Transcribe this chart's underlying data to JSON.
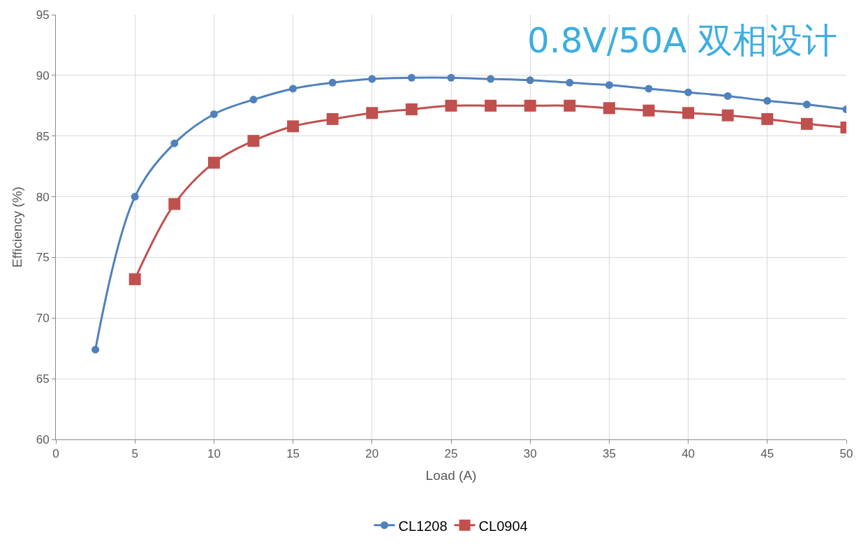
{
  "chart_data": {
    "type": "line",
    "title": "0.8V/50A 双相设计",
    "xlabel": "Load (A)",
    "ylabel": "Efficiency (%)",
    "xlim": [
      0,
      50
    ],
    "xticks": [
      0,
      5,
      10,
      15,
      20,
      25,
      30,
      35,
      40,
      45,
      50
    ],
    "ylim": [
      60,
      95
    ],
    "yticks": [
      60,
      65,
      70,
      75,
      80,
      85,
      90,
      95
    ],
    "grid": true,
    "legend": "bottom",
    "series": [
      {
        "name": "CL1208",
        "color": "#4f81bd",
        "marker": "circle",
        "x": [
          2.5,
          5,
          7.5,
          10,
          12.5,
          15,
          17.5,
          20,
          22.5,
          25,
          27.5,
          30,
          32.5,
          35,
          37.5,
          40,
          42.5,
          45,
          47.5,
          50
        ],
        "values": [
          67.4,
          80.0,
          84.4,
          86.8,
          88.0,
          88.9,
          89.4,
          89.7,
          89.8,
          89.8,
          89.7,
          89.6,
          89.4,
          89.2,
          88.9,
          88.6,
          88.3,
          87.9,
          87.6,
          87.2
        ]
      },
      {
        "name": "CL0904",
        "color": "#c0504d",
        "marker": "square",
        "x": [
          5,
          7.5,
          10,
          12.5,
          15,
          17.5,
          20,
          22.5,
          25,
          27.5,
          30,
          32.5,
          35,
          37.5,
          40,
          42.5,
          45,
          47.5,
          50
        ],
        "values": [
          73.2,
          79.4,
          82.8,
          84.6,
          85.8,
          86.4,
          86.9,
          87.2,
          87.5,
          87.5,
          87.5,
          87.5,
          87.3,
          87.1,
          86.9,
          86.7,
          86.4,
          86.0,
          85.7
        ]
      }
    ]
  }
}
